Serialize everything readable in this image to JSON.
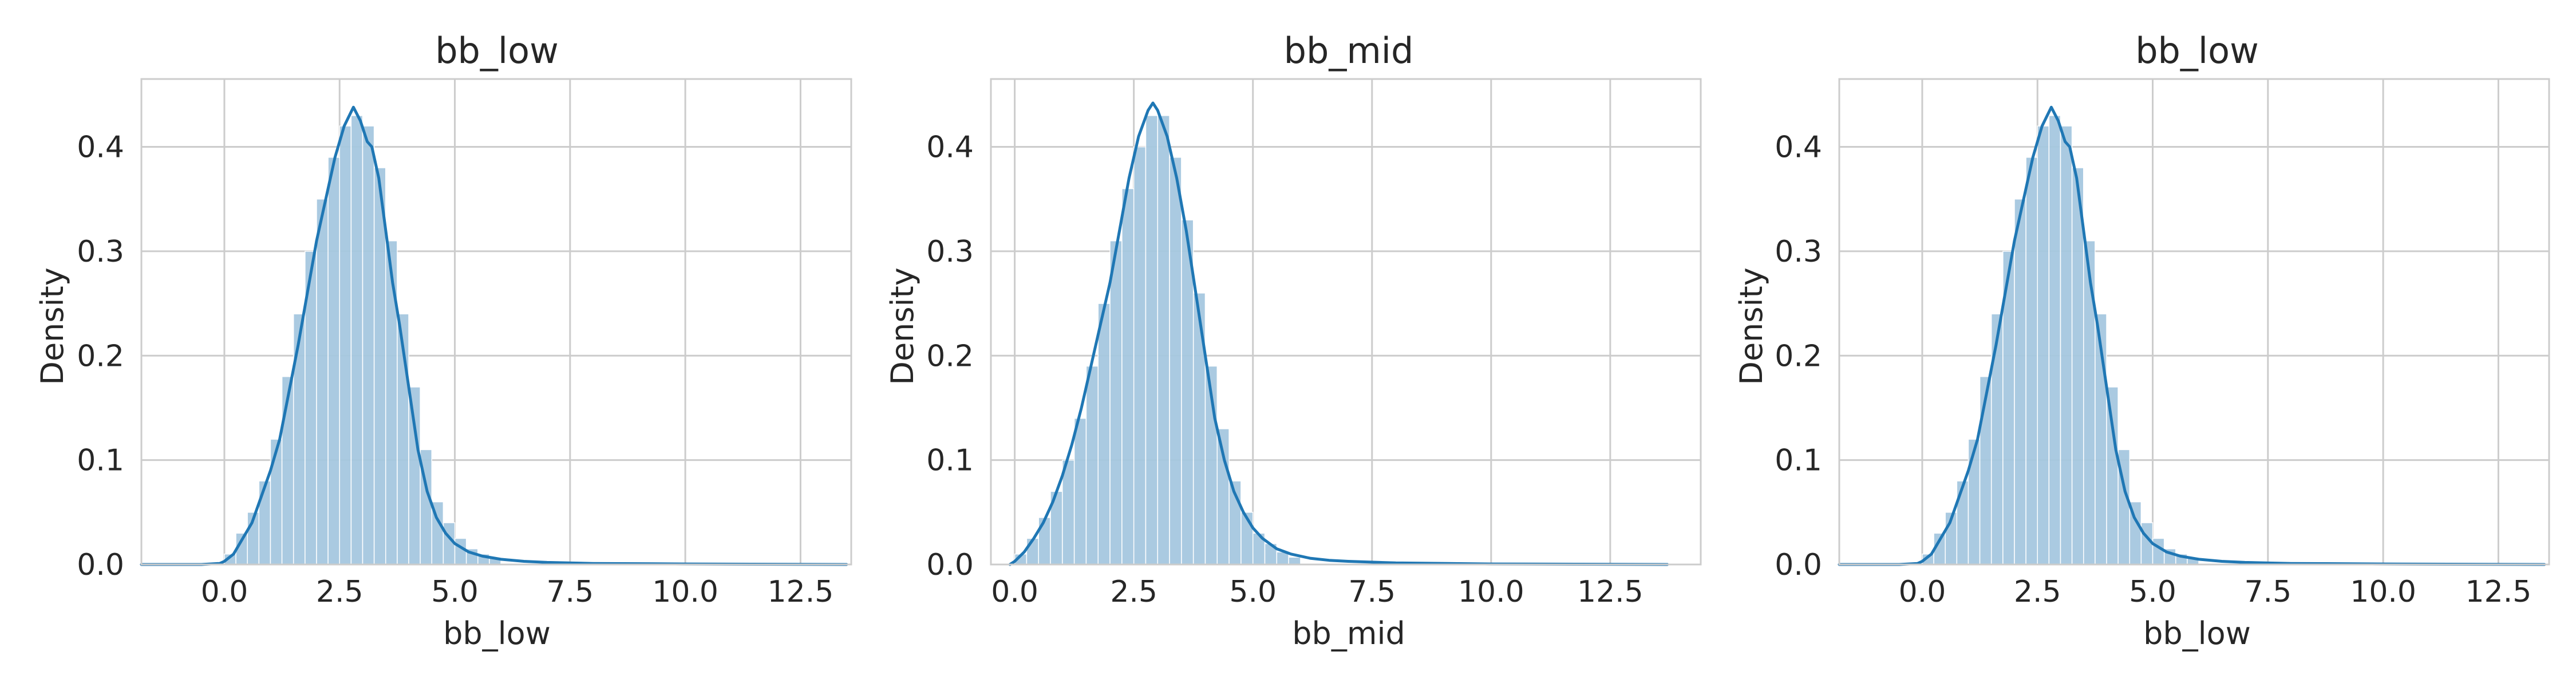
{
  "chart_data": [
    {
      "type": "histogram",
      "title": "bb_low",
      "xlabel": "bb_low",
      "ylabel": "Density",
      "xlim": [
        -1.8,
        13.6
      ],
      "ylim": [
        0,
        0.465
      ],
      "x_ticks": [
        0.0,
        2.5,
        5.0,
        7.5,
        10.0,
        12.5
      ],
      "x_tick_labels": [
        "0.0",
        "2.5",
        "5.0",
        "7.5",
        "10.0",
        "12.5"
      ],
      "y_ticks": [
        0.0,
        0.1,
        0.2,
        0.3,
        0.4
      ],
      "y_tick_labels": [
        "0.0",
        "0.1",
        "0.2",
        "0.3",
        "0.4"
      ],
      "grid": true,
      "colors": {
        "bar": "#a6c8e0",
        "line": "#1f77b4",
        "grid": "#cccccc"
      },
      "bins": {
        "edges": [
          0.0,
          0.25,
          0.5,
          0.75,
          1.0,
          1.25,
          1.5,
          1.75,
          2.0,
          2.25,
          2.5,
          2.75,
          3.0,
          3.25,
          3.5,
          3.75,
          4.0,
          4.25,
          4.5,
          4.75,
          5.0,
          5.25,
          5.5,
          5.75,
          6.0
        ],
        "values": [
          0.01,
          0.03,
          0.05,
          0.08,
          0.12,
          0.18,
          0.24,
          0.3,
          0.35,
          0.39,
          0.42,
          0.43,
          0.42,
          0.38,
          0.31,
          0.24,
          0.17,
          0.11,
          0.06,
          0.04,
          0.025,
          0.015,
          0.01,
          0.006
        ]
      },
      "kde": {
        "x": [
          -1.8,
          -0.5,
          -0.1,
          0.0,
          0.2,
          0.4,
          0.6,
          0.8,
          1.0,
          1.2,
          1.4,
          1.6,
          1.8,
          2.0,
          2.2,
          2.4,
          2.6,
          2.8,
          2.95,
          3.1,
          3.2,
          3.35,
          3.5,
          3.65,
          3.8,
          4.0,
          4.2,
          4.4,
          4.6,
          4.8,
          5.0,
          5.3,
          5.6,
          6.0,
          6.5,
          7.0,
          8.0,
          10.0,
          13.5
        ],
        "y": [
          0.0,
          0.0,
          0.001,
          0.003,
          0.01,
          0.025,
          0.04,
          0.065,
          0.09,
          0.12,
          0.165,
          0.21,
          0.26,
          0.31,
          0.35,
          0.39,
          0.42,
          0.438,
          0.425,
          0.405,
          0.4,
          0.37,
          0.32,
          0.27,
          0.23,
          0.17,
          0.11,
          0.07,
          0.045,
          0.03,
          0.02,
          0.012,
          0.008,
          0.005,
          0.003,
          0.002,
          0.001,
          0.0005,
          0.0
        ]
      }
    },
    {
      "type": "histogram",
      "title": "bb_mid",
      "xlabel": "bb_mid",
      "ylabel": "Density",
      "xlim": [
        -0.5,
        14.4
      ],
      "ylim": [
        0,
        0.465
      ],
      "x_ticks": [
        0.0,
        2.5,
        5.0,
        7.5,
        10.0,
        12.5
      ],
      "x_tick_labels": [
        "0.0",
        "2.5",
        "5.0",
        "7.5",
        "10.0",
        "12.5"
      ],
      "y_ticks": [
        0.0,
        0.1,
        0.2,
        0.3,
        0.4
      ],
      "y_tick_labels": [
        "0.0",
        "0.1",
        "0.2",
        "0.3",
        "0.4"
      ],
      "grid": true,
      "colors": {
        "bar": "#a6c8e0",
        "line": "#1f77b4",
        "grid": "#cccccc"
      },
      "bins": {
        "edges": [
          0.0,
          0.25,
          0.5,
          0.75,
          1.0,
          1.25,
          1.5,
          1.75,
          2.0,
          2.25,
          2.5,
          2.75,
          3.0,
          3.25,
          3.5,
          3.75,
          4.0,
          4.25,
          4.5,
          4.75,
          5.0,
          5.25,
          5.5,
          5.75,
          6.0
        ],
        "values": [
          0.01,
          0.025,
          0.045,
          0.07,
          0.1,
          0.14,
          0.19,
          0.25,
          0.31,
          0.36,
          0.4,
          0.43,
          0.43,
          0.39,
          0.33,
          0.26,
          0.19,
          0.13,
          0.08,
          0.05,
          0.03,
          0.02,
          0.012,
          0.007
        ]
      },
      "kde": {
        "x": [
          -0.1,
          0.0,
          0.2,
          0.4,
          0.6,
          0.8,
          1.0,
          1.2,
          1.4,
          1.6,
          1.8,
          2.0,
          2.2,
          2.4,
          2.6,
          2.8,
          2.9,
          3.0,
          3.2,
          3.4,
          3.6,
          3.8,
          4.0,
          4.2,
          4.4,
          4.6,
          4.8,
          5.0,
          5.2,
          5.5,
          5.8,
          6.2,
          6.6,
          7.0,
          8.0,
          10.0,
          13.7
        ],
        "y": [
          0.0,
          0.003,
          0.012,
          0.025,
          0.04,
          0.06,
          0.085,
          0.115,
          0.15,
          0.19,
          0.23,
          0.27,
          0.32,
          0.37,
          0.41,
          0.435,
          0.442,
          0.435,
          0.41,
          0.37,
          0.32,
          0.26,
          0.2,
          0.14,
          0.1,
          0.07,
          0.05,
          0.035,
          0.025,
          0.015,
          0.01,
          0.006,
          0.004,
          0.003,
          0.0015,
          0.0005,
          0.0
        ]
      }
    },
    {
      "type": "histogram",
      "title": "bb_low",
      "xlabel": "bb_low",
      "ylabel": "Density",
      "xlim": [
        -1.8,
        13.6
      ],
      "ylim": [
        0,
        0.465
      ],
      "x_ticks": [
        0.0,
        2.5,
        5.0,
        7.5,
        10.0,
        12.5
      ],
      "x_tick_labels": [
        "0.0",
        "2.5",
        "5.0",
        "7.5",
        "10.0",
        "12.5"
      ],
      "y_ticks": [
        0.0,
        0.1,
        0.2,
        0.3,
        0.4
      ],
      "y_tick_labels": [
        "0.0",
        "0.1",
        "0.2",
        "0.3",
        "0.4"
      ],
      "grid": true,
      "colors": {
        "bar": "#a6c8e0",
        "line": "#1f77b4",
        "grid": "#cccccc"
      },
      "bins": {
        "edges": [
          0.0,
          0.25,
          0.5,
          0.75,
          1.0,
          1.25,
          1.5,
          1.75,
          2.0,
          2.25,
          2.5,
          2.75,
          3.0,
          3.25,
          3.5,
          3.75,
          4.0,
          4.25,
          4.5,
          4.75,
          5.0,
          5.25,
          5.5,
          5.75,
          6.0
        ],
        "values": [
          0.01,
          0.03,
          0.05,
          0.08,
          0.12,
          0.18,
          0.24,
          0.3,
          0.35,
          0.39,
          0.42,
          0.43,
          0.42,
          0.38,
          0.31,
          0.24,
          0.17,
          0.11,
          0.06,
          0.04,
          0.025,
          0.015,
          0.01,
          0.006
        ]
      },
      "kde": {
        "x": [
          -1.8,
          -0.5,
          -0.1,
          0.0,
          0.2,
          0.4,
          0.6,
          0.8,
          1.0,
          1.2,
          1.4,
          1.6,
          1.8,
          2.0,
          2.2,
          2.4,
          2.6,
          2.8,
          2.95,
          3.1,
          3.2,
          3.35,
          3.5,
          3.65,
          3.8,
          4.0,
          4.2,
          4.4,
          4.6,
          4.8,
          5.0,
          5.3,
          5.6,
          6.0,
          6.5,
          7.0,
          8.0,
          10.0,
          13.5
        ],
        "y": [
          0.0,
          0.0,
          0.001,
          0.003,
          0.01,
          0.025,
          0.04,
          0.065,
          0.09,
          0.12,
          0.165,
          0.21,
          0.26,
          0.31,
          0.35,
          0.39,
          0.42,
          0.438,
          0.425,
          0.405,
          0.4,
          0.37,
          0.32,
          0.27,
          0.23,
          0.17,
          0.11,
          0.07,
          0.045,
          0.03,
          0.02,
          0.012,
          0.008,
          0.005,
          0.003,
          0.002,
          0.001,
          0.0005,
          0.0
        ]
      }
    }
  ]
}
